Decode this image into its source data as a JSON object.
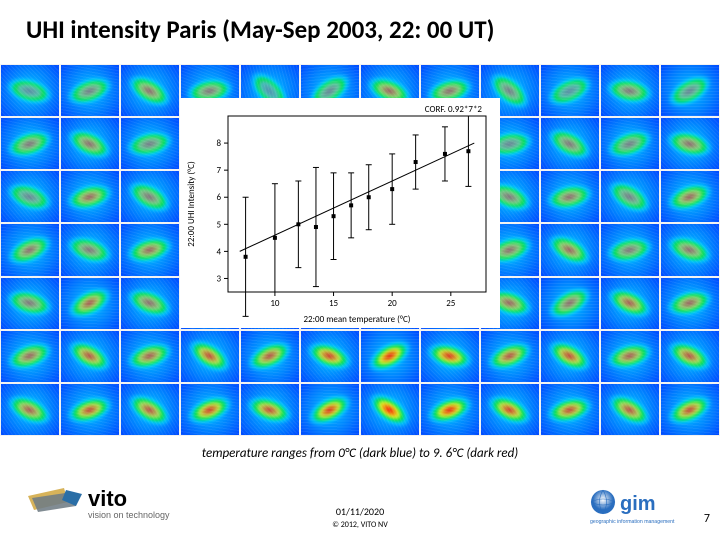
{
  "title": "UHI intensity Paris (May-Sep 2003, 22: 00 UT)",
  "caption": "temperature ranges from 0°C (dark blue) to 9. 6°C (dark red)",
  "footer": {
    "date": "01/11/2020",
    "copyright": "© 2012, VITO NV",
    "page": "7",
    "vito_tagline": "vision on technology",
    "gim_tagline": "geographic information management"
  },
  "mosaic": {
    "cols": 12,
    "rows": 7,
    "tile_count": 84,
    "color_scale": {
      "dark_blue": "#001f9e",
      "blue": "#0048ff",
      "cyan": "#00c8ff",
      "green": "#00ff00",
      "yellow": "#ffff00",
      "orange": "#ff8000",
      "red": "#ff0000"
    },
    "tile_hot_opacity": [
      0.35,
      0.45,
      0.55,
      0.5,
      0.3,
      0.4,
      0.6,
      0.55,
      0.45,
      0.35,
      0.5,
      0.4,
      0.5,
      0.55,
      0.45,
      0.6,
      0.5,
      0.35,
      0.65,
      0.55,
      0.4,
      0.5,
      0.45,
      0.55,
      0.4,
      0.6,
      0.5,
      0.55,
      0.45,
      0.5,
      0.6,
      0.65,
      0.5,
      0.55,
      0.45,
      0.6,
      0.55,
      0.5,
      0.6,
      0.65,
      0.55,
      0.5,
      0.7,
      0.6,
      0.55,
      0.6,
      0.5,
      0.55,
      0.5,
      0.65,
      0.55,
      0.7,
      0.6,
      0.65,
      0.8,
      0.7,
      0.6,
      0.55,
      0.65,
      0.6,
      0.6,
      0.7,
      0.65,
      0.75,
      0.7,
      0.8,
      0.9,
      0.85,
      0.7,
      0.75,
      0.65,
      0.7,
      0.65,
      0.75,
      0.7,
      0.8,
      0.75,
      0.85,
      0.95,
      0.9,
      0.8,
      0.75,
      0.7,
      0.75
    ],
    "tile_rotation": [
      15,
      -20,
      30,
      -10,
      45,
      -35,
      22,
      -15,
      40,
      -25,
      10,
      -30,
      -18,
      25,
      -12,
      35,
      -28,
      18,
      -22,
      32,
      -10,
      28,
      -20,
      15,
      20,
      -15,
      28,
      -30,
      12,
      -25,
      35,
      -18,
      22,
      -12,
      30,
      -20,
      -25,
      18,
      -15,
      30,
      -22,
      25,
      -30,
      15,
      -18,
      28,
      -12,
      20,
      15,
      -28,
      22,
      -15,
      30,
      -20,
      35,
      -25,
      18,
      -30,
      25,
      -15,
      -20,
      28,
      -18,
      32,
      -25,
      20,
      -30,
      15,
      -22,
      28,
      -15,
      25,
      25,
      -18,
      30,
      -22,
      18,
      -28,
      35,
      -20,
      25,
      -15,
      30,
      -25
    ]
  },
  "chart": {
    "type": "scatter_errorbar_line",
    "background_color": "#ffffff",
    "axis_color": "#000000",
    "font_size_axis": 9,
    "font_size_corr": 9,
    "corr_label": "CORF.  0.92*7*2",
    "ylabel": "22:00 UHI Intensity (°C)",
    "xlabel": "22:00 mean temperature (°C)",
    "xlim": [
      6,
      28
    ],
    "ylim": [
      2.5,
      9.0
    ],
    "xticks": [
      10,
      15,
      20,
      25
    ],
    "yticks": [
      3,
      4,
      5,
      6,
      7,
      8
    ],
    "marker_size": 4,
    "marker_color": "#000000",
    "line_color": "#000000",
    "line_width": 1,
    "errorbar_width": 1,
    "points": [
      {
        "x": 7.5,
        "y": 3.8,
        "err": 2.2
      },
      {
        "x": 10.0,
        "y": 4.5,
        "err": 2.0
      },
      {
        "x": 12.0,
        "y": 5.0,
        "err": 1.6
      },
      {
        "x": 13.5,
        "y": 4.9,
        "err": 2.2
      },
      {
        "x": 15.0,
        "y": 5.3,
        "err": 1.6
      },
      {
        "x": 16.5,
        "y": 5.7,
        "err": 1.2
      },
      {
        "x": 18.0,
        "y": 6.0,
        "err": 1.2
      },
      {
        "x": 20.0,
        "y": 6.3,
        "err": 1.3
      },
      {
        "x": 22.0,
        "y": 7.3,
        "err": 1.0
      },
      {
        "x": 24.5,
        "y": 7.6,
        "err": 1.0
      },
      {
        "x": 26.5,
        "y": 7.7,
        "err": 1.3
      }
    ],
    "fit_line": {
      "x1": 7.0,
      "y1": 4.0,
      "x2": 27.0,
      "y2": 8.0
    }
  }
}
